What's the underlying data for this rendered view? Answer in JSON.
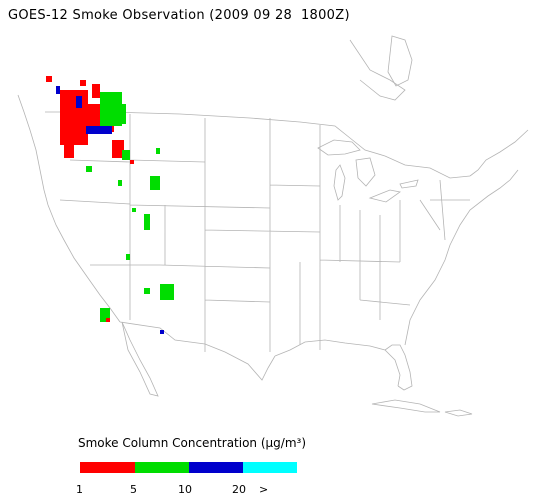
{
  "title": "GOES-12 Smoke Observation (2009 09 28  1800Z)",
  "legend": {
    "title": "Smoke Column Concentration (µg/m³)",
    "swatches": [
      {
        "range": "1-5",
        "color": "#ff0000"
      },
      {
        "range": "5-10",
        "color": "#00dd00"
      },
      {
        "range": "10-20",
        "color": "#0000cc"
      },
      {
        "range": "20+",
        "color": "#00ffff"
      }
    ],
    "ticks": [
      "1",
      "5",
      "10",
      "20",
      ">"
    ]
  },
  "colors": {
    "outline": "#b4b4b4",
    "smoke_low": "#ff0000",
    "smoke_mid": "#00dd00",
    "smoke_high": "#0000cc"
  }
}
